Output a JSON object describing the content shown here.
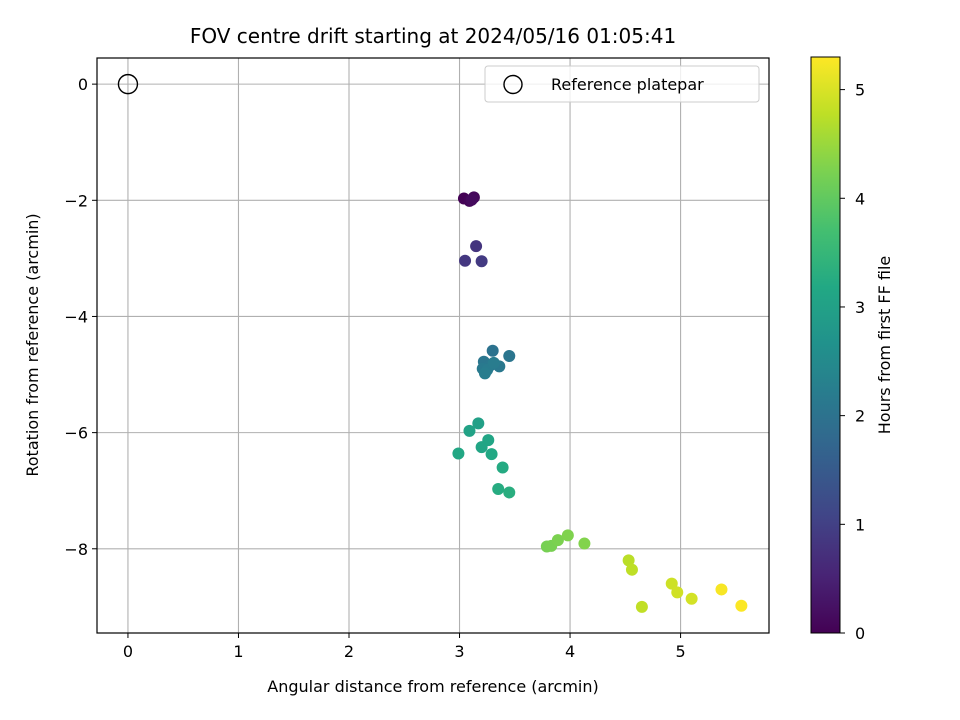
{
  "chart_data": {
    "type": "scatter",
    "title": "FOV centre drift starting at 2024/05/16 01:05:41",
    "xlabel": "Angular distance from reference (arcmin)",
    "ylabel": "Rotation from reference (arcmin)",
    "xlim": [
      -0.28,
      5.8
    ],
    "ylim": [
      -9.45,
      0.45
    ],
    "xticks": [
      0,
      1,
      2,
      3,
      4,
      5
    ],
    "yticks": [
      0,
      -2,
      -4,
      -6,
      -8
    ],
    "grid": true,
    "legend": {
      "position": "top-right",
      "entries": [
        "Reference platepar"
      ]
    },
    "reference": {
      "x": 0,
      "y": 0,
      "label": "Reference platepar"
    },
    "colorbar": {
      "label": "Hours from first FF file",
      "colormap": "viridis",
      "range": [
        0,
        5.3
      ],
      "ticks": [
        0,
        1,
        2,
        3,
        4,
        5
      ]
    },
    "points": [
      {
        "x": 3.04,
        "y": -1.97,
        "c": 0.02
      },
      {
        "x": 3.09,
        "y": -2.01,
        "c": 0.06
      },
      {
        "x": 3.13,
        "y": -1.95,
        "c": 0.1
      },
      {
        "x": 3.11,
        "y": -1.99,
        "c": 0.14
      },
      {
        "x": 3.15,
        "y": -2.79,
        "c": 0.8
      },
      {
        "x": 3.05,
        "y": -3.04,
        "c": 0.85
      },
      {
        "x": 3.2,
        "y": -3.05,
        "c": 0.9
      },
      {
        "x": 3.3,
        "y": -4.59,
        "c": 2.0
      },
      {
        "x": 3.45,
        "y": -4.68,
        "c": 2.05
      },
      {
        "x": 3.22,
        "y": -4.78,
        "c": 2.08
      },
      {
        "x": 3.28,
        "y": -4.84,
        "c": 2.1
      },
      {
        "x": 3.36,
        "y": -4.86,
        "c": 2.12
      },
      {
        "x": 3.21,
        "y": -4.9,
        "c": 2.15
      },
      {
        "x": 3.25,
        "y": -4.92,
        "c": 2.18
      },
      {
        "x": 3.31,
        "y": -4.8,
        "c": 2.2
      },
      {
        "x": 3.23,
        "y": -4.98,
        "c": 2.22
      },
      {
        "x": 3.17,
        "y": -5.84,
        "c": 3.0
      },
      {
        "x": 3.09,
        "y": -5.97,
        "c": 3.05
      },
      {
        "x": 3.26,
        "y": -6.13,
        "c": 3.1
      },
      {
        "x": 3.2,
        "y": -6.25,
        "c": 3.12
      },
      {
        "x": 2.99,
        "y": -6.36,
        "c": 3.15
      },
      {
        "x": 3.29,
        "y": -6.37,
        "c": 3.18
      },
      {
        "x": 3.39,
        "y": -6.6,
        "c": 3.22
      },
      {
        "x": 3.35,
        "y": -6.97,
        "c": 3.26
      },
      {
        "x": 3.45,
        "y": -7.03,
        "c": 3.3
      },
      {
        "x": 3.79,
        "y": -7.96,
        "c": 4.2
      },
      {
        "x": 3.83,
        "y": -7.95,
        "c": 4.22
      },
      {
        "x": 3.89,
        "y": -7.85,
        "c": 4.25
      },
      {
        "x": 3.98,
        "y": -7.77,
        "c": 4.28
      },
      {
        "x": 4.13,
        "y": -7.91,
        "c": 4.3
      },
      {
        "x": 4.53,
        "y": -8.2,
        "c": 4.75
      },
      {
        "x": 4.56,
        "y": -8.36,
        "c": 4.78
      },
      {
        "x": 4.65,
        "y": -9.0,
        "c": 4.8
      },
      {
        "x": 4.92,
        "y": -8.6,
        "c": 4.9
      },
      {
        "x": 4.97,
        "y": -8.75,
        "c": 4.93
      },
      {
        "x": 5.1,
        "y": -8.86,
        "c": 4.95
      },
      {
        "x": 5.37,
        "y": -8.7,
        "c": 5.25
      },
      {
        "x": 5.55,
        "y": -8.98,
        "c": 5.28
      }
    ]
  }
}
